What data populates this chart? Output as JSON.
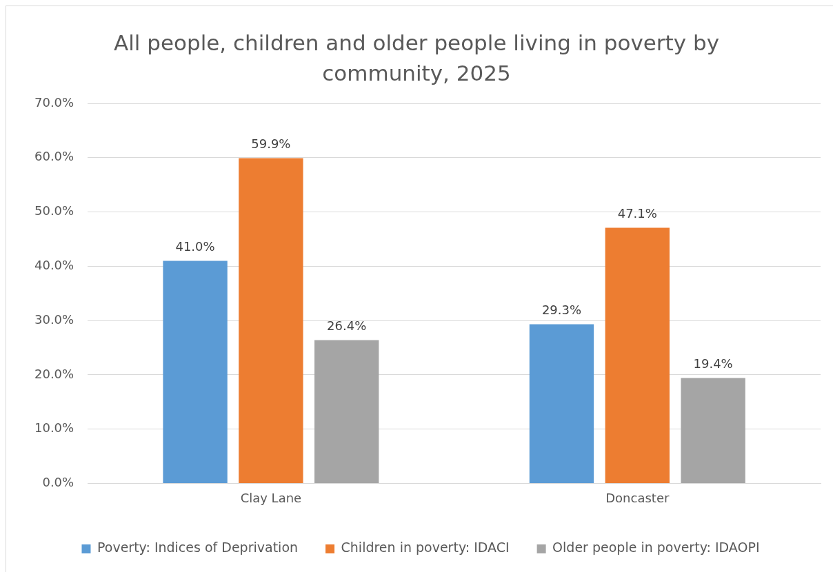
{
  "chart_data": {
    "type": "bar",
    "title": "All people, children and older people living in poverty by community, 2025",
    "categories": [
      "Clay Lane",
      "Doncaster"
    ],
    "series": [
      {
        "name": "Poverty: Indices of Deprivation",
        "color": "#5b9bd5",
        "values": [
          41.0,
          29.3
        ],
        "value_labels": [
          "41.0%",
          "29.3%"
        ]
      },
      {
        "name": "Children in poverty: IDACI",
        "color": "#ed7d31",
        "values": [
          59.9,
          47.1
        ],
        "value_labels": [
          "59.9%",
          "47.1%"
        ]
      },
      {
        "name": "Older people in poverty: IDAOPI",
        "color": "#a5a5a5",
        "values": [
          26.4,
          19.4
        ],
        "value_labels": [
          "26.4%",
          "19.4%"
        ]
      }
    ],
    "ylim": [
      0,
      70
    ],
    "yticks": [
      {
        "value": 0,
        "label": "0.0%"
      },
      {
        "value": 10,
        "label": "10.0%"
      },
      {
        "value": 20,
        "label": "20.0%"
      },
      {
        "value": 30,
        "label": "30.0%"
      },
      {
        "value": 40,
        "label": "40.0%"
      },
      {
        "value": 50,
        "label": "50.0%"
      },
      {
        "value": 60,
        "label": "60.0%"
      },
      {
        "value": 70,
        "label": "70.0%"
      }
    ],
    "grid": "y",
    "legend": "bottom"
  }
}
